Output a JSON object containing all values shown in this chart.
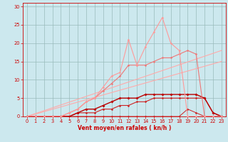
{
  "bg_color": "#cce8ee",
  "grid_color": "#99bbbb",
  "axis_color": "#cc0000",
  "xlabel": "Vent moyen/en rafales ( kn/h )",
  "xlim": [
    -0.5,
    23.5
  ],
  "ylim": [
    0,
    31
  ],
  "xticks": [
    0,
    1,
    2,
    3,
    4,
    5,
    6,
    7,
    8,
    9,
    10,
    11,
    12,
    13,
    14,
    15,
    16,
    17,
    18,
    19,
    20,
    21,
    22,
    23
  ],
  "yticks": [
    0,
    5,
    10,
    15,
    20,
    25,
    30
  ],
  "series": [
    {
      "x": [
        0,
        1,
        2,
        3,
        4,
        5,
        6,
        7,
        8,
        9,
        10,
        11,
        12,
        13,
        14,
        15,
        16,
        17,
        18,
        19,
        20,
        21,
        22,
        23
      ],
      "y": [
        0,
        0,
        0,
        0,
        0,
        0,
        0,
        0,
        0,
        0,
        0,
        0,
        0,
        0,
        0,
        0,
        0,
        0,
        0,
        2,
        1,
        0,
        0,
        0
      ],
      "color": "#cc2222",
      "lw": 0.7,
      "marker": true,
      "ms": 1.5
    },
    {
      "x": [
        0,
        1,
        2,
        3,
        4,
        5,
        6,
        7,
        8,
        9,
        10,
        11,
        12,
        13,
        14,
        15,
        16,
        17,
        18,
        19,
        20,
        21,
        22,
        23
      ],
      "y": [
        0,
        0,
        0,
        0,
        0,
        0,
        1,
        1,
        1,
        2,
        2,
        3,
        3,
        4,
        4,
        5,
        5,
        5,
        5,
        5,
        5,
        5,
        1,
        0
      ],
      "color": "#cc2222",
      "lw": 0.8,
      "marker": true,
      "ms": 1.5
    },
    {
      "x": [
        0,
        1,
        2,
        3,
        4,
        5,
        6,
        7,
        8,
        9,
        10,
        11,
        12,
        13,
        14,
        15,
        16,
        17,
        18,
        19,
        20,
        21,
        22,
        23
      ],
      "y": [
        0,
        0,
        0,
        0,
        0,
        0,
        1,
        2,
        2,
        3,
        4,
        5,
        5,
        5,
        6,
        6,
        6,
        6,
        6,
        6,
        6,
        5,
        1,
        0
      ],
      "color": "#bb0000",
      "lw": 1.0,
      "marker": true,
      "ms": 1.8
    },
    {
      "x": [
        0,
        1,
        2,
        3,
        4,
        5,
        6,
        7,
        8,
        9,
        10,
        11,
        12,
        13,
        14,
        15,
        16,
        17,
        18,
        19,
        20,
        21,
        22,
        23
      ],
      "y": [
        0,
        0,
        0,
        0,
        0,
        1,
        2,
        4,
        5,
        7,
        9,
        11,
        14,
        14,
        14,
        15,
        16,
        16,
        17,
        18,
        17,
        0,
        0,
        0
      ],
      "color": "#ee7777",
      "lw": 0.8,
      "marker": true,
      "ms": 1.5
    },
    {
      "x": [
        0,
        1,
        2,
        3,
        4,
        5,
        6,
        7,
        8,
        9,
        10,
        11,
        12,
        13,
        14,
        15,
        16,
        17,
        18,
        19,
        20,
        21,
        22,
        23
      ],
      "y": [
        0,
        0,
        0,
        0,
        0,
        1,
        2,
        4,
        5,
        8,
        11,
        12,
        21,
        14,
        19,
        23,
        27,
        20,
        18,
        0,
        0,
        0,
        0,
        0
      ],
      "color": "#ff9999",
      "lw": 0.8,
      "marker": true,
      "ms": 1.5
    },
    {
      "x": [
        0,
        23
      ],
      "y": [
        0,
        15
      ],
      "color": "#ffaaaa",
      "lw": 0.8,
      "marker": false
    },
    {
      "x": [
        0,
        23
      ],
      "y": [
        0,
        18
      ],
      "color": "#ffaaaa",
      "lw": 0.8,
      "marker": false
    }
  ],
  "xlabel_fontsize": 5.5,
  "tick_fontsize": 4.8
}
